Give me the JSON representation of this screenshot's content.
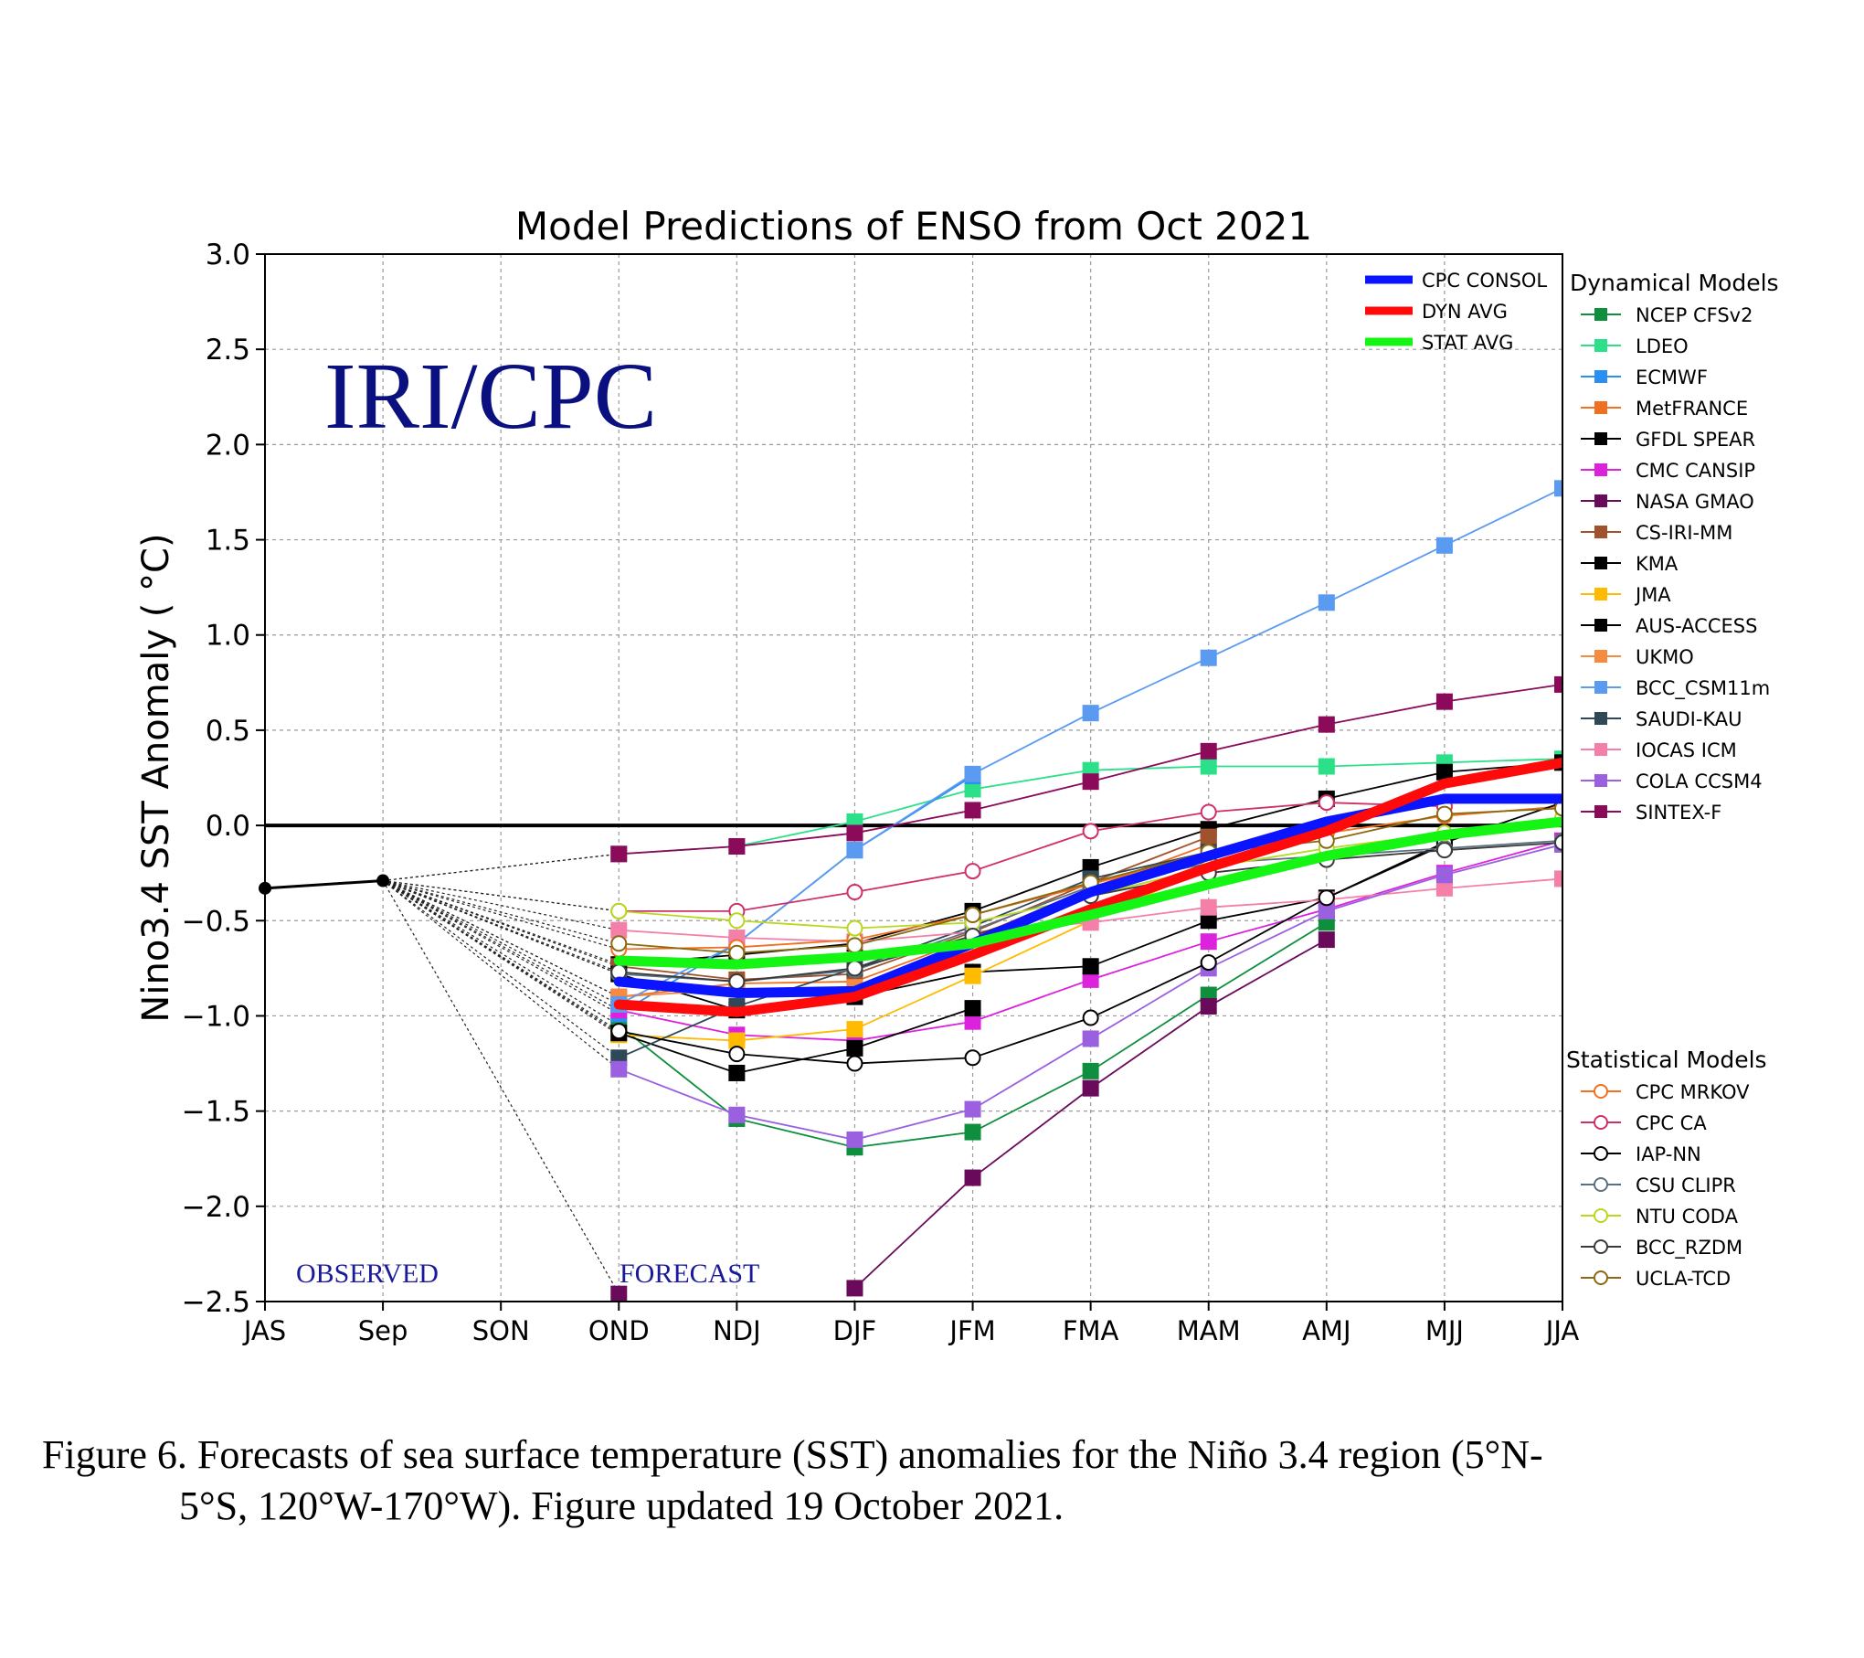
{
  "chart_data": {
    "type": "line",
    "title": "Model Predictions of ENSO from Oct 2021",
    "watermark": "IRI/CPC",
    "ylabel": "Nino3.4 SST Anomaly ( °C)",
    "xlabel": "",
    "ylim": [
      -2.5,
      3.0
    ],
    "yticks": [
      3.0,
      2.5,
      2.0,
      1.5,
      1.0,
      0.5,
      0.0,
      -0.5,
      -1.0,
      -1.5,
      -2.0,
      -2.5
    ],
    "ytick_labels": [
      "3.0",
      "2.5",
      "2.0",
      "1.5",
      "1.0",
      "0.5",
      "0.0",
      "−0.5",
      "−1.0",
      "−1.5",
      "−2.0",
      "−2.5"
    ],
    "categories": [
      "JAS",
      "Sep",
      "SON",
      "OND",
      "NDJ",
      "DJF",
      "JFM",
      "FMA",
      "MAM",
      "AMJ",
      "MJJ",
      "JJA"
    ],
    "grid": true,
    "zero_line": 0.0,
    "annotations": {
      "observed": "OBSERVED",
      "forecast": "FORECAST"
    },
    "observed": {
      "x": [
        "JAS",
        "Sep"
      ],
      "values": [
        -0.33,
        -0.29
      ],
      "color": "#000000"
    },
    "averages": [
      {
        "name": "CPC CONSOL",
        "color": "#0a14ff",
        "values": [
          -0.82,
          -0.88,
          -0.87,
          -0.62,
          -0.35,
          -0.16,
          0.02,
          0.14,
          0.14
        ]
      },
      {
        "name": "DYN AVG",
        "color": "#ff0a0a",
        "values": [
          -0.94,
          -0.98,
          -0.9,
          -0.68,
          -0.44,
          -0.22,
          -0.03,
          0.22,
          0.33
        ]
      },
      {
        "name": "STAT AVG",
        "color": "#14f514",
        "values": [
          -0.71,
          -0.73,
          -0.69,
          -0.62,
          -0.47,
          -0.31,
          -0.16,
          -0.05,
          0.02
        ]
      }
    ],
    "legend_dynamical_title": "Dynamical Models",
    "legend_statistical_title": "Statistical Models",
    "dynamical": [
      {
        "name": "NCEP CFSv2",
        "color": "#0e8f3e",
        "values": [
          -1.05,
          -1.54,
          -1.69,
          -1.61,
          -1.29,
          -0.89,
          -0.51,
          null,
          null
        ]
      },
      {
        "name": "LDEO",
        "color": "#2ce08a",
        "values": [
          -0.15,
          -0.11,
          0.02,
          0.19,
          0.29,
          0.31,
          0.31,
          0.33,
          0.35
        ]
      },
      {
        "name": "ECMWF",
        "color": "#2a8ff0",
        "values": [
          -0.99,
          -0.62,
          -0.13,
          0.26,
          null,
          null,
          null,
          null,
          null
        ]
      },
      {
        "name": "MetFRANCE",
        "color": "#f07020",
        "values": [
          -0.9,
          -0.83,
          -0.82,
          -0.59,
          -0.33,
          -0.1,
          null,
          null,
          null
        ]
      },
      {
        "name": "GFDL SPEAR",
        "color": "#000000",
        "values": [
          -0.73,
          -0.68,
          -0.62,
          -0.45,
          -0.22,
          -0.02,
          0.14,
          0.28,
          0.33
        ]
      },
      {
        "name": "CMC CANSIP",
        "color": "#dd22dd",
        "values": [
          -0.97,
          -1.1,
          -1.13,
          -1.03,
          -0.81,
          -0.61,
          -0.44,
          -0.25,
          -0.08
        ]
      },
      {
        "name": "NASA GMAO",
        "color": "#6a0a5a",
        "values": [
          -2.46,
          null,
          -2.43,
          -1.85,
          -1.38,
          -0.95,
          -0.6,
          null,
          null
        ]
      },
      {
        "name": "CS-IRI-MM",
        "color": "#a0522d",
        "values": [
          -0.74,
          -0.81,
          -0.78,
          -0.56,
          -0.3,
          -0.06,
          null,
          null,
          null
        ]
      },
      {
        "name": "KMA",
        "color": "#000000",
        "values": [
          -0.78,
          -0.97,
          -0.9,
          -0.77,
          -0.74,
          -0.5,
          -0.38,
          -0.1,
          null
        ]
      },
      {
        "name": "JMA",
        "color": "#ffbb00",
        "values": [
          -1.1,
          -1.13,
          -1.07,
          -0.79,
          -0.5,
          -0.22,
          null,
          null,
          null
        ]
      },
      {
        "name": "AUS-ACCESS",
        "color": "#000000",
        "values": [
          -1.09,
          -1.3,
          -1.17,
          -0.96,
          null,
          null,
          null,
          null,
          null
        ]
      },
      {
        "name": "UKMO",
        "color": "#f58a40",
        "values": [
          -0.9,
          -0.86,
          -0.85,
          null,
          null,
          null,
          null,
          null,
          null
        ]
      },
      {
        "name": "BCC_CSM11m",
        "color": "#5a9af0",
        "values": [
          -0.94,
          -0.62,
          -0.13,
          0.27,
          0.59,
          0.88,
          1.17,
          1.47,
          1.77
        ]
      },
      {
        "name": "SAUDI-KAU",
        "color": "#2f4858",
        "values": [
          -1.22,
          -0.95,
          -0.75,
          -0.53,
          -0.28,
          -0.14,
          null,
          null,
          null
        ]
      },
      {
        "name": "IOCAS ICM",
        "color": "#f47fa8",
        "values": [
          -0.55,
          -0.59,
          -0.61,
          -0.56,
          -0.51,
          -0.43,
          -0.39,
          -0.33,
          -0.28
        ]
      },
      {
        "name": "COLA CCSM4",
        "color": "#9a60e0",
        "values": [
          -1.28,
          -1.52,
          -1.65,
          -1.49,
          -1.12,
          -0.75,
          -0.45,
          -0.26,
          -0.1
        ]
      },
      {
        "name": "SINTEX-F",
        "color": "#8b0a5a",
        "values": [
          -0.15,
          -0.11,
          -0.04,
          0.08,
          0.23,
          0.39,
          0.53,
          0.65,
          0.74
        ]
      }
    ],
    "statistical": [
      {
        "name": "CPC MRKOV",
        "color": "#f07020",
        "values": [
          -0.65,
          -0.64,
          -0.6,
          -0.47,
          -0.31,
          -0.14,
          -0.04,
          0.05,
          0.1
        ]
      },
      {
        "name": "CPC CA",
        "color": "#d0306a",
        "values": [
          -0.45,
          -0.45,
          -0.35,
          -0.24,
          -0.03,
          0.07,
          0.12,
          0.1,
          null
        ]
      },
      {
        "name": "IAP-NN",
        "color": "#000000",
        "values": [
          -1.08,
          -1.2,
          -1.25,
          -1.22,
          -1.01,
          -0.72,
          -0.38,
          -0.09,
          0.12
        ]
      },
      {
        "name": "CSU CLIPR",
        "color": "#5a7080",
        "values": [
          -0.78,
          -0.82,
          -0.76,
          -0.55,
          -0.32,
          -0.2,
          -0.16,
          -0.12,
          -0.08
        ]
      },
      {
        "name": "NTU CODA",
        "color": "#b8d820",
        "values": [
          -0.45,
          -0.5,
          -0.54,
          -0.51,
          -0.37,
          -0.22,
          -0.12,
          -0.04,
          0.04
        ]
      },
      {
        "name": "BCC_RZDM",
        "color": "#3a3a3a",
        "values": [
          -0.77,
          -0.82,
          -0.75,
          -0.58,
          -0.37,
          -0.25,
          -0.18,
          -0.13,
          -0.09
        ]
      },
      {
        "name": "UCLA-TCD",
        "color": "#8a6a10",
        "values": [
          -0.62,
          -0.67,
          -0.63,
          -0.47,
          -0.3,
          -0.14,
          -0.08,
          0.06,
          0.09
        ]
      }
    ]
  },
  "caption": {
    "line1": "Figure 6. Forecasts of sea surface temperature (SST) anomalies for the Niño 3.4 region (5°N-",
    "line2": "5°S, 120°W-170°W). Figure updated 19 October 2021."
  }
}
